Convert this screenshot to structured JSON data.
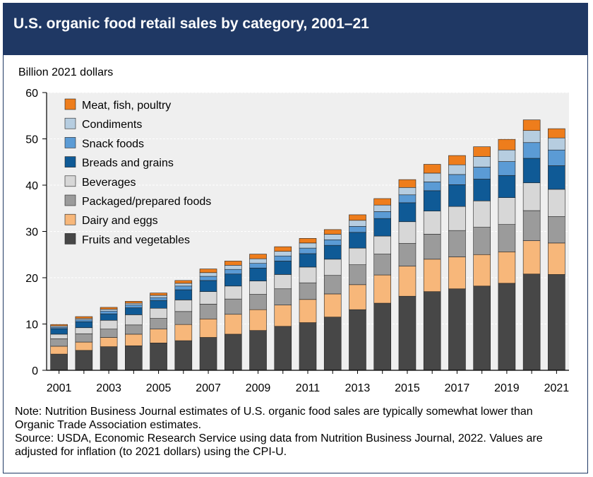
{
  "header": {
    "title": "U.S. organic food retail sales by category, 2001–21"
  },
  "chart_data": {
    "type": "bar",
    "stacked": true,
    "title": "U.S. organic food retail sales by category, 2001–21",
    "ylabel": "Billion 2021 dollars",
    "xlabel": "",
    "ylim": [
      0,
      60
    ],
    "yticks": [
      0,
      10,
      20,
      30,
      40,
      50,
      60
    ],
    "grid": true,
    "legend_position": "top-left",
    "categories": [
      "2001",
      "2002",
      "2003",
      "2004",
      "2005",
      "2006",
      "2007",
      "2008",
      "2009",
      "2010",
      "2011",
      "2012",
      "2013",
      "2014",
      "2015",
      "2016",
      "2017",
      "2018",
      "2019",
      "2020",
      "2021"
    ],
    "xtick_labels": [
      "2001",
      "",
      "2003",
      "",
      "2005",
      "",
      "2007",
      "",
      "2009",
      "",
      "2011",
      "",
      "2013",
      "",
      "2015",
      "",
      "2017",
      "",
      "2019",
      "",
      "2021"
    ],
    "series": [
      {
        "name": "Fruits and vegetables",
        "color": "#474747",
        "values": [
          3.5,
          4.3,
          5.1,
          5.3,
          5.9,
          6.4,
          7.1,
          7.8,
          8.6,
          9.5,
          10.3,
          11.5,
          13.1,
          14.5,
          16.0,
          17.0,
          17.6,
          18.2,
          18.8,
          20.8,
          20.7
        ]
      },
      {
        "name": "Dairy and eggs",
        "color": "#f7b77a",
        "values": [
          1.7,
          1.8,
          2.0,
          2.5,
          3.0,
          3.5,
          4.0,
          4.3,
          4.5,
          4.6,
          5.0,
          5.0,
          5.4,
          6.1,
          6.5,
          7.0,
          6.9,
          6.8,
          6.8,
          7.2,
          6.8
        ]
      },
      {
        "name": "Packaged/prepared foods",
        "color": "#9b9b9b",
        "values": [
          1.6,
          1.8,
          1.8,
          2.0,
          2.3,
          2.8,
          3.2,
          3.3,
          3.3,
          3.5,
          3.6,
          4.0,
          4.3,
          4.5,
          4.9,
          5.4,
          5.7,
          5.9,
          5.9,
          6.5,
          5.7
        ]
      },
      {
        "name": "Beverages",
        "color": "#d7d7d7",
        "values": [
          1.0,
          1.3,
          1.9,
          2.2,
          2.2,
          2.5,
          2.7,
          2.8,
          2.9,
          3.1,
          3.4,
          3.5,
          3.6,
          3.9,
          4.7,
          5.0,
          5.2,
          5.7,
          5.8,
          6.0,
          5.9
        ]
      },
      {
        "name": "Breads and grains",
        "color": "#0f5a96",
        "values": [
          1.2,
          1.3,
          1.4,
          1.5,
          1.7,
          2.2,
          2.4,
          2.6,
          2.8,
          2.9,
          2.9,
          3.0,
          3.4,
          3.8,
          4.1,
          4.4,
          4.7,
          4.7,
          4.8,
          5.3,
          5.1
        ]
      },
      {
        "name": "Snack foods",
        "color": "#5b9bd5",
        "values": [
          0.3,
          0.4,
          0.6,
          0.6,
          0.6,
          0.8,
          0.9,
          1.0,
          1.0,
          1.1,
          1.2,
          1.2,
          1.3,
          1.5,
          1.7,
          1.9,
          2.2,
          2.6,
          3.0,
          3.4,
          3.4
        ]
      },
      {
        "name": "Condiments",
        "color": "#b6cde0",
        "values": [
          0.3,
          0.3,
          0.4,
          0.4,
          0.5,
          0.6,
          0.8,
          0.9,
          1.0,
          1.0,
          1.1,
          1.2,
          1.3,
          1.4,
          1.6,
          1.9,
          2.1,
          2.3,
          2.5,
          2.6,
          2.6
        ]
      },
      {
        "name": "Meat, fish, poultry",
        "color": "#ee7d1c",
        "values": [
          0.3,
          0.4,
          0.4,
          0.4,
          0.5,
          0.6,
          0.8,
          0.9,
          1.0,
          1.0,
          1.0,
          1.0,
          1.2,
          1.4,
          1.7,
          1.9,
          2.0,
          2.1,
          2.3,
          2.3,
          2.0
        ]
      }
    ]
  },
  "notes": {
    "note": "Note: Nutrition Business Journal estimates of U.S. organic food sales are typically somewhat lower than Organic Trade Association estimates.",
    "source": "Source: USDA, Economic Research Service using data from Nutrition Business Journal, 2022. Values are adjusted for inflation (to 2021 dollars) using the CPI-U."
  }
}
